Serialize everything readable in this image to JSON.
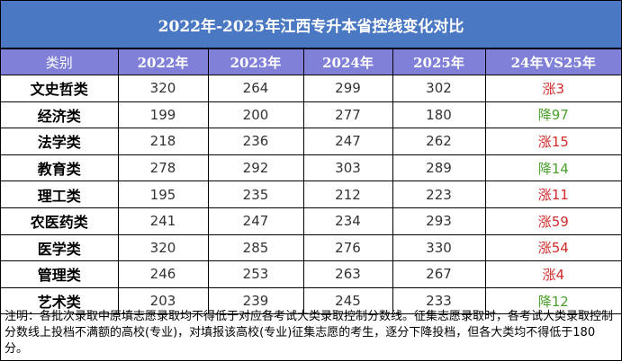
{
  "title": "2022年-2025年江西专升本省控线变化对比",
  "headers": [
    "类别",
    "2022年",
    "2023年",
    "2024年",
    "2025年",
    "24年VS25年"
  ],
  "rows": [
    {
      "category": "文史哲类",
      "y2022": "320",
      "y2023": "264",
      "y2024": "299",
      "y2025": "302",
      "change": "涨3",
      "trend": "up"
    },
    {
      "category": "经济类",
      "y2022": "199",
      "y2023": "200",
      "y2024": "277",
      "y2025": "180",
      "change": "降97",
      "trend": "down"
    },
    {
      "category": "法学类",
      "y2022": "218",
      "y2023": "236",
      "y2024": "247",
      "y2025": "262",
      "change": "涨15",
      "trend": "up"
    },
    {
      "category": "教育类",
      "y2022": "278",
      "y2023": "292",
      "y2024": "303",
      "y2025": "289",
      "change": "降14",
      "trend": "down"
    },
    {
      "category": "理工类",
      "y2022": "195",
      "y2023": "235",
      "y2024": "212",
      "y2025": "223",
      "change": "涨11",
      "trend": "up"
    },
    {
      "category": "农医药类",
      "y2022": "241",
      "y2023": "247",
      "y2024": "234",
      "y2025": "293",
      "change": "涨59",
      "trend": "up"
    },
    {
      "category": "医学类",
      "y2022": "320",
      "y2023": "285",
      "y2024": "276",
      "y2025": "330",
      "change": "涨54",
      "trend": "up"
    },
    {
      "category": "管理类",
      "y2022": "246",
      "y2023": "253",
      "y2024": "263",
      "y2025": "267",
      "change": "涨4",
      "trend": "up"
    },
    {
      "category": "艺术类",
      "y2022": "203",
      "y2023": "239",
      "y2024": "245",
      "y2025": "233",
      "change": "降12",
      "trend": "down"
    }
  ],
  "note": "注明：各批次录取中原填志愿录取均不得低于对应各考试大类录取控制分数线。征集志愿录取时，各考试大类录取控制分数线上投档不满额的高校(专业)，对填报该高校(专业)征集志愿的考生，逐分下降投档，但各大类均不得低于180分。",
  "colors": {
    "title_bg": "#4a78c2",
    "header_bg": "#8080d8",
    "increase": "#d22b2b",
    "decrease": "#4aa02c"
  }
}
